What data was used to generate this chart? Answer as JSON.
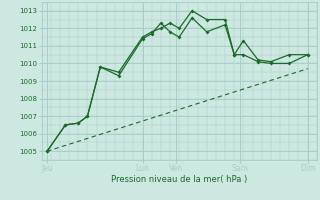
{
  "bg_color": "#cce8e0",
  "grid_color": "#a8cec8",
  "line_color": "#1a6b2a",
  "title": "Pression niveau de la mer( hPa )",
  "ylim": [
    1004.5,
    1013.5
  ],
  "yticks": [
    1005,
    1006,
    1007,
    1008,
    1009,
    1010,
    1011,
    1012,
    1013
  ],
  "xlim": [
    0,
    15
  ],
  "day_labels": [
    "Jeu",
    "Lun",
    "Ven",
    "Sam",
    "Dim"
  ],
  "day_positions": [
    0.3,
    5.5,
    7.3,
    10.8,
    14.5
  ],
  "vline_positions": [
    0.3,
    5.5,
    7.3,
    10.8,
    14.5
  ],
  "series1_x": [
    0.3,
    1.3,
    2.0,
    2.5,
    3.2,
    4.2,
    5.5,
    6.0,
    6.5,
    7.0,
    7.5,
    8.2,
    9.0,
    10.0,
    10.5,
    11.0,
    11.8,
    12.5,
    13.5,
    14.5
  ],
  "series1_y": [
    1005.0,
    1006.5,
    1006.6,
    1007.0,
    1009.8,
    1009.5,
    1011.5,
    1011.8,
    1012.0,
    1012.3,
    1012.0,
    1013.0,
    1012.5,
    1012.5,
    1010.5,
    1011.3,
    1010.2,
    1010.1,
    1010.5,
    1010.5
  ],
  "series2_x": [
    0.3,
    1.3,
    2.0,
    2.5,
    3.2,
    4.2,
    5.5,
    6.0,
    6.5,
    7.0,
    7.5,
    8.2,
    9.0,
    10.0,
    10.5,
    11.0,
    11.8,
    12.5,
    13.5,
    14.5
  ],
  "series2_y": [
    1005.0,
    1006.5,
    1006.6,
    1007.0,
    1009.8,
    1009.3,
    1011.4,
    1011.7,
    1012.3,
    1011.8,
    1011.5,
    1012.6,
    1011.8,
    1012.2,
    1010.5,
    1010.5,
    1010.1,
    1010.0,
    1010.0,
    1010.5
  ],
  "series3_x": [
    0.3,
    14.5
  ],
  "series3_y": [
    1005.0,
    1009.7
  ]
}
